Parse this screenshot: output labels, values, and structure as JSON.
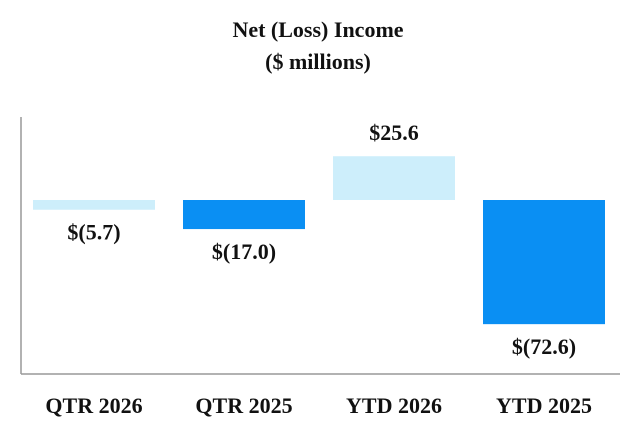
{
  "chart_data": {
    "type": "bar",
    "title": "Net (Loss) Income",
    "subtitle": "($ millions)",
    "categories": [
      "QTR 2026",
      "QTR 2025",
      "YTD 2026",
      "YTD 2025"
    ],
    "values": [
      -5.7,
      -17.0,
      25.6,
      -72.6
    ],
    "data_labels": [
      "$(5.7)",
      "$(17.0)",
      "$25.6",
      "$(72.6)"
    ],
    "colors": [
      "#cdeefb",
      "#0a8ff3",
      "#cdeefb",
      "#0a8ff3"
    ],
    "axis_color": "#999999",
    "ylim": [
      -100,
      47
    ],
    "grid": false,
    "legend": "none"
  }
}
